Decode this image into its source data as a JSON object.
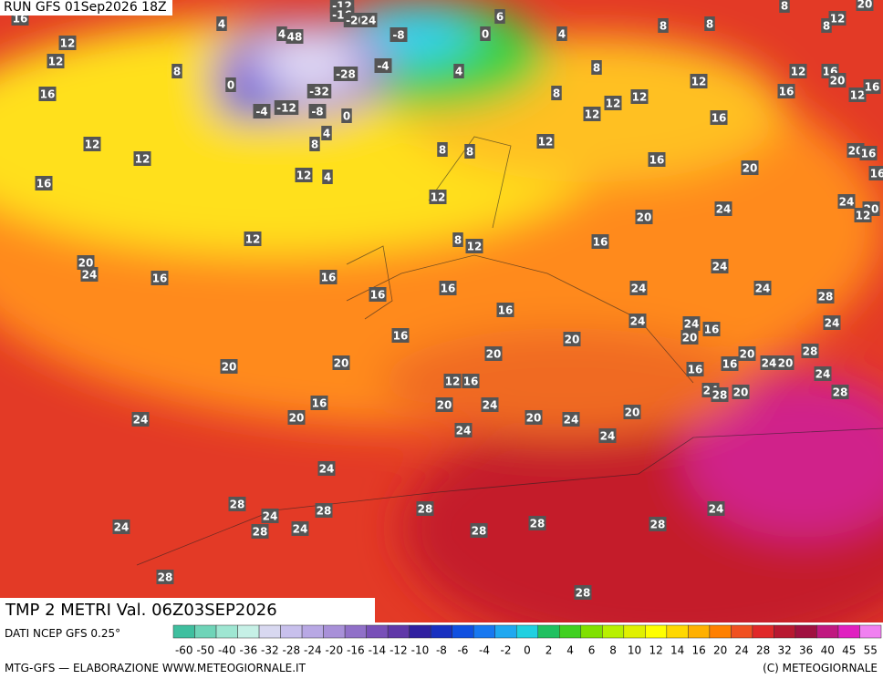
{
  "header": {
    "run": "RUN GFS 01Sep2026 18Z",
    "title": "TMP 2 METRI Val. 06Z03SEP2026"
  },
  "footer": {
    "source": "DATI NCEP GFS 0.25°",
    "credit": "MTG-GFS — ELABORAZIONE WWW.METEOGIORNALE.IT",
    "copyright": "(C) METEOGIORNALE"
  },
  "colorbar": {
    "labels": [
      -60,
      -50,
      -40,
      -36,
      -32,
      -28,
      -24,
      -20,
      -16,
      -14,
      -12,
      -10,
      -8,
      -6,
      -4,
      -2,
      0,
      2,
      4,
      6,
      8,
      10,
      12,
      14,
      16,
      20,
      24,
      28,
      32,
      36,
      40,
      45,
      55
    ],
    "colors": [
      "#3fbf9f",
      "#6fd4b8",
      "#9fe6d2",
      "#c6f0e6",
      "#d8d8f0",
      "#c8c0ec",
      "#b8a8e4",
      "#a890d8",
      "#9070c8",
      "#7850b8",
      "#6038a8",
      "#3020a0",
      "#1830c0",
      "#1050e0",
      "#1878f0",
      "#20a8f0",
      "#20d0e0",
      "#20c060",
      "#40d020",
      "#80e000",
      "#b8f000",
      "#e0f000",
      "#ffff00",
      "#ffd800",
      "#ffb000",
      "#ff8000",
      "#f05020",
      "#e02828",
      "#b81830",
      "#a01040",
      "#c01880",
      "#e020c0",
      "#f080f0"
    ]
  },
  "labels": [
    16,
    4,
    4,
    48,
    -12,
    -16,
    -20,
    24,
    -8,
    0,
    6,
    4,
    8,
    8,
    8,
    12,
    8,
    20,
    12,
    12,
    16,
    8,
    0,
    -28,
    -4,
    -32,
    -12,
    -4,
    -8,
    0,
    4,
    8,
    8,
    12,
    12,
    16,
    20,
    12,
    16,
    16,
    12,
    12,
    12,
    16,
    12,
    12,
    4,
    8,
    8,
    8,
    12,
    16,
    20,
    20,
    16,
    16,
    16,
    12,
    4,
    12,
    24,
    20,
    12,
    20,
    24,
    12,
    8,
    12,
    16,
    20,
    24,
    16,
    16,
    24,
    24,
    28,
    16,
    16,
    24,
    16,
    24,
    24,
    24,
    16,
    20,
    16,
    20,
    20,
    28,
    20,
    24,
    20,
    24,
    20,
    20,
    16,
    16,
    12,
    16,
    24,
    28,
    20,
    28,
    16,
    20,
    24,
    20,
    20,
    24,
    20,
    24,
    24,
    24,
    24,
    28,
    24,
    28,
    28,
    24,
    24,
    28,
    24,
    28,
    28,
    28,
    28,
    28
  ]
}
